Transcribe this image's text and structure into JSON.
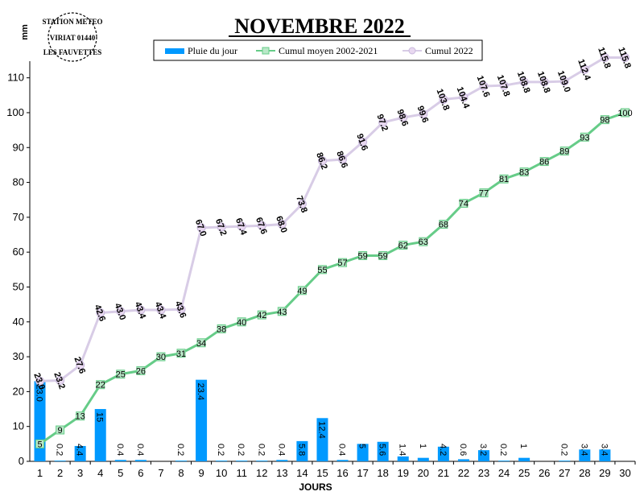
{
  "chart_data": {
    "type": "bar",
    "title": "NOVEMBRE 2022",
    "ylabel": "mm",
    "xlabel": "JOURS",
    "ylim": [
      0,
      115
    ],
    "yticks": [
      0,
      10,
      20,
      30,
      40,
      50,
      60,
      70,
      80,
      90,
      100,
      110
    ],
    "legend_position": "top-center",
    "categories": [
      "1",
      "2",
      "3",
      "4",
      "5",
      "6",
      "7",
      "8",
      "9",
      "10",
      "11",
      "12",
      "13",
      "14",
      "15",
      "16",
      "17",
      "18",
      "19",
      "20",
      "21",
      "22",
      "23",
      "24",
      "25",
      "26",
      "27",
      "28",
      "29",
      "30"
    ],
    "series": [
      {
        "name": "Pluie du jour",
        "kind": "bar",
        "color": "#0099ff",
        "values": [
          23.0,
          0.2,
          4.4,
          15,
          0.4,
          0.4,
          0,
          0.2,
          23.4,
          0.2,
          0.2,
          0.2,
          0.4,
          5.8,
          12.4,
          0.4,
          5,
          5.6,
          1.4,
          1,
          4.2,
          0.6,
          3.2,
          0.2,
          1,
          0,
          0.2,
          3.4,
          3.4,
          0
        ],
        "labels": [
          "23.0",
          "0.2",
          "4.4",
          "15",
          "0.4",
          "0.4",
          "",
          "0.2",
          "23.4",
          "0.2",
          "0.2",
          "0.2",
          "0.4",
          "5.8",
          "12.4",
          "0.4",
          "5",
          "5.6",
          "1.4",
          "1",
          "4.2",
          "0.6",
          "3.2",
          "0.2",
          "1",
          "",
          "0.2",
          "3.4",
          "3.4",
          ""
        ]
      },
      {
        "name": "Cumul moyen 2002-2021",
        "kind": "line",
        "color": "#66cc88",
        "marker_fill": "#b9e8c8",
        "values": [
          5,
          9,
          13,
          22,
          25,
          26,
          30,
          31,
          34,
          38,
          40,
          42,
          43,
          49,
          55,
          57,
          59,
          59,
          62,
          63,
          68,
          74,
          77,
          81,
          83,
          86,
          89,
          93,
          98,
          100
        ],
        "labels": [
          "5",
          "9",
          "13",
          "22",
          "25",
          "26",
          "30",
          "31",
          "34",
          "38",
          "40",
          "42",
          "43",
          "49",
          "55",
          "57",
          "59",
          "59",
          "62",
          "63",
          "68",
          "74",
          "77",
          "81",
          "83",
          "86",
          "89",
          "93",
          "98",
          "100"
        ]
      },
      {
        "name": "Cumul 2022",
        "kind": "line",
        "color": "#d8cce6",
        "marker_fill": "#e8d8f0",
        "values": [
          23.0,
          23.2,
          27.6,
          42.6,
          43.0,
          43.4,
          43.4,
          43.6,
          67.0,
          67.2,
          67.4,
          67.6,
          68.0,
          73.8,
          86.2,
          86.6,
          91.6,
          97.2,
          98.6,
          99.6,
          103.8,
          104.4,
          107.6,
          107.8,
          108.8,
          108.8,
          109.0,
          112.4,
          115.8,
          115.8
        ],
        "labels": [
          "23.0",
          "23.2",
          "27.6",
          "42.6",
          "43.0",
          "43.4",
          "43.4",
          "43.6",
          "67.0",
          "67.2",
          "67.4",
          "67.6",
          "68.0",
          "73.8",
          "86.2",
          "86.6",
          "91.6",
          "97.2",
          "98.6",
          "99.6",
          "103.8",
          "104.4",
          "107.6",
          "107.8",
          "108.8",
          "108.8",
          "109.0",
          "112.4",
          "115.8",
          "115.8"
        ]
      }
    ]
  },
  "logo": {
    "line1": "STATION METEO",
    "line2": "VIRIAT 01440",
    "line3": "LES FAUVETTES"
  }
}
